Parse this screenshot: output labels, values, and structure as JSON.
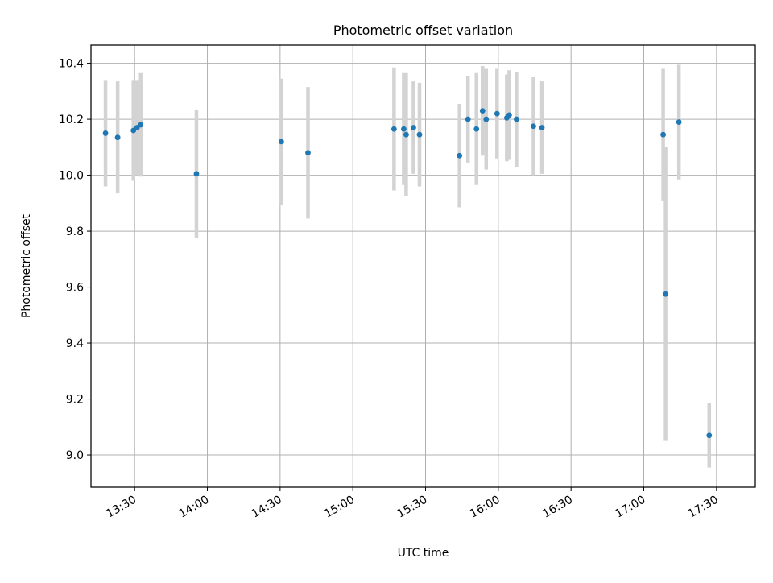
{
  "chart_data": {
    "type": "scatter",
    "title": "Photometric offset variation",
    "xlabel": "UTC time",
    "ylabel": "Photometric offset",
    "x_axis_type": "time",
    "xlim": [
      "13:12",
      "17:46"
    ],
    "ylim": [
      8.885,
      10.465
    ],
    "grid": true,
    "legend": "none",
    "x_ticks": [
      "13:30",
      "14:00",
      "14:30",
      "15:00",
      "15:30",
      "16:00",
      "16:30",
      "17:00",
      "17:30"
    ],
    "y_ticks": [
      "9.0",
      "9.2",
      "9.4",
      "9.6",
      "9.8",
      "10.0",
      "10.2",
      "10.4"
    ],
    "colors": {
      "point": "#1f77b4",
      "errorbar": "#d3d3d3",
      "grid": "#b0b0b0"
    },
    "series": [
      {
        "points": [
          {
            "x": "13:18",
            "y": 10.15,
            "yerr": 0.19
          },
          {
            "x": "13:23",
            "y": 10.135,
            "yerr": 0.2
          },
          {
            "x": "13:29.5",
            "y": 10.16,
            "yerr": 0.18
          },
          {
            "x": "13:31",
            "y": 10.17,
            "yerr": 0.17
          },
          {
            "x": "13:32.5",
            "y": 10.18,
            "yerr": 0.185
          },
          {
            "x": "13:55.5",
            "y": 10.005,
            "yerr": 0.23
          },
          {
            "x": "14:30.5",
            "y": 10.12,
            "yerr": 0.225
          },
          {
            "x": "14:41.5",
            "y": 10.08,
            "yerr": 0.235
          },
          {
            "x": "15:17",
            "y": 10.165,
            "yerr": 0.22
          },
          {
            "x": "15:21",
            "y": 10.165,
            "yerr": 0.2
          },
          {
            "x": "15:22",
            "y": 10.145,
            "yerr": 0.22
          },
          {
            "x": "15:25",
            "y": 10.17,
            "yerr": 0.165
          },
          {
            "x": "15:27.5",
            "y": 10.145,
            "yerr": 0.185
          },
          {
            "x": "15:44",
            "y": 10.07,
            "yerr": 0.185
          },
          {
            "x": "15:47.5",
            "y": 10.2,
            "yerr": 0.155
          },
          {
            "x": "15:51",
            "y": 10.165,
            "yerr": 0.2
          },
          {
            "x": "15:53.5",
            "y": 10.23,
            "yerr": 0.16
          },
          {
            "x": "15:55",
            "y": 10.2,
            "yerr": 0.18
          },
          {
            "x": "15:59.5",
            "y": 10.22,
            "yerr": 0.16
          },
          {
            "x": "16:03.5",
            "y": 10.205,
            "yerr": 0.155
          },
          {
            "x": "16:04.5",
            "y": 10.215,
            "yerr": 0.16
          },
          {
            "x": "16:07.5",
            "y": 10.2,
            "yerr": 0.17
          },
          {
            "x": "16:14.5",
            "y": 10.175,
            "yerr": 0.175
          },
          {
            "x": "16:18",
            "y": 10.17,
            "yerr": 0.165
          },
          {
            "x": "17:08",
            "y": 10.145,
            "yerr": 0.235
          },
          {
            "x": "17:09",
            "y": 9.575,
            "yerr": 0.525
          },
          {
            "x": "17:14.5",
            "y": 10.19,
            "yerr": 0.205
          },
          {
            "x": "17:27",
            "y": 9.07,
            "yerr": 0.115
          }
        ]
      }
    ]
  }
}
